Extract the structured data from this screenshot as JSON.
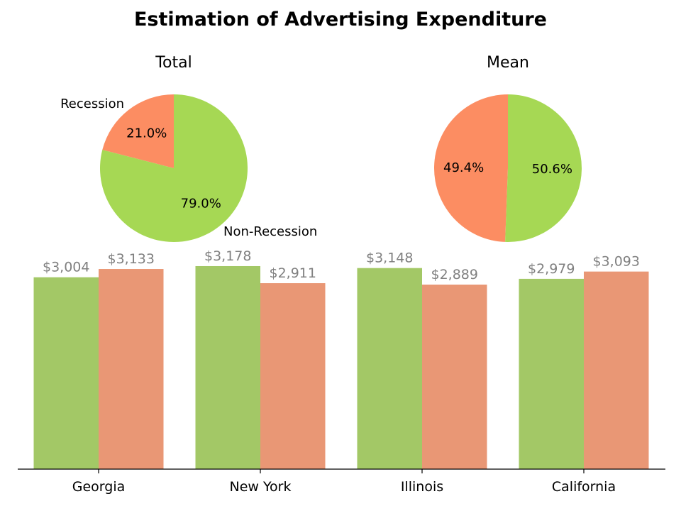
{
  "figure": {
    "title": "Estimation of Advertising Expenditure"
  },
  "chart_data": [
    {
      "type": "pie",
      "title": "Total",
      "labels": [
        "Recession",
        "Non-Recession"
      ],
      "values": [
        21.0,
        79.0
      ],
      "pct_labels": [
        "21.0%",
        "79.0%"
      ],
      "colors": [
        "#fc8d62",
        "#a6d854"
      ]
    },
    {
      "type": "pie",
      "title": "Mean",
      "labels": [
        "",
        ""
      ],
      "values": [
        49.4,
        50.6
      ],
      "pct_labels": [
        "49.4%",
        "50.6%"
      ],
      "colors": [
        "#fc8d62",
        "#a6d854"
      ]
    },
    {
      "type": "bar",
      "categories": [
        "Georgia",
        "New York",
        "Illinois",
        "California"
      ],
      "series": [
        {
          "values": [
            3004,
            3178,
            3148,
            2979
          ],
          "labels": [
            "$3,004",
            "$3,178",
            "$3,148",
            "$2,979"
          ],
          "color": "#a3c866"
        },
        {
          "values": [
            3133,
            2911,
            2889,
            3093
          ],
          "labels": [
            "$3,133",
            "$2,911",
            "$2,889",
            "$3,093"
          ],
          "color": "#e99775"
        }
      ],
      "ylim": [
        0,
        3300
      ],
      "y_axis_visible": false,
      "grid": false
    }
  ]
}
